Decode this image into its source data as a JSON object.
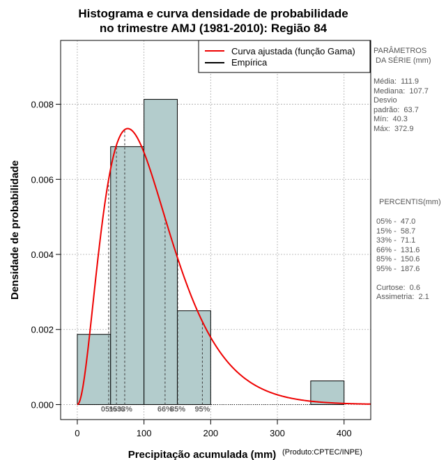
{
  "chart_data": {
    "type": "bar",
    "title_line1": "Histograma e curva densidade de probabilidade",
    "title_line2": "no trimestre AMJ (1981-2010): Região 84",
    "xlabel": "Precipitação acumulada (mm)",
    "ylabel": "Densidade de probabilidade",
    "credit": "(Produto:CPTEC/INPE)",
    "xlim": [
      -25,
      440
    ],
    "ylim": [
      -0.0004,
      0.0097
    ],
    "x_ticks": [
      0,
      100,
      200,
      300,
      400
    ],
    "x_tick_labels": [
      "0",
      "100",
      "200",
      "300",
      "400"
    ],
    "y_ticks": [
      0.0,
      0.002,
      0.004,
      0.006,
      0.008
    ],
    "y_tick_labels": [
      "0.000",
      "0.002",
      "0.004",
      "0.006",
      "0.008"
    ],
    "grid": true,
    "bars": [
      {
        "x0": 0,
        "x1": 50,
        "density": 0.00187
      },
      {
        "x0": 50,
        "x1": 100,
        "density": 0.00687
      },
      {
        "x0": 100,
        "x1": 150,
        "density": 0.00813
      },
      {
        "x0": 150,
        "x1": 200,
        "density": 0.0025
      },
      {
        "x0": 200,
        "x1": 250,
        "density": 0.0
      },
      {
        "x0": 250,
        "x1": 300,
        "density": 0.0
      },
      {
        "x0": 300,
        "x1": 350,
        "density": 0.0
      },
      {
        "x0": 350,
        "x1": 400,
        "density": 0.00063
      }
    ],
    "bar_color": "#b3cccc",
    "curve": {
      "name": "Curva ajustada (função Gama)",
      "color": "#ee0000",
      "gamma_shape": 3.1,
      "gamma_scale": 36,
      "x_range": [
        0,
        440
      ]
    },
    "empirical": {
      "name": "Empírica",
      "color": "#000000"
    },
    "legend_position": "top-right",
    "percentile_lines": [
      {
        "label": "05%",
        "value": 47.0
      },
      {
        "label": "15%",
        "value": 58.7
      },
      {
        "label": "33%",
        "value": 71.1
      },
      {
        "label": "66%",
        "value": 131.6
      },
      {
        "label": "85%",
        "value": 150.6
      },
      {
        "label": "95%",
        "value": 187.6
      }
    ]
  },
  "side_panel": {
    "params_title": "PARÂMETROS\n DA SÉRIE (mm)",
    "params_text": "Média:  111.9\nMediana:  107.7\nDesvio\npadrão:  63.7\nMín:  40.3\nMáx:  372.9",
    "percentis_title": "PERCENTIS(mm)",
    "percentis_text": "05% -  47.0\n15% -  58.7\n33% -  71.1\n66% -  131.6\n85% -  150.6\n95% -  187.6\n\nCurtose:  0.6\nAssimetria:  2.1"
  }
}
